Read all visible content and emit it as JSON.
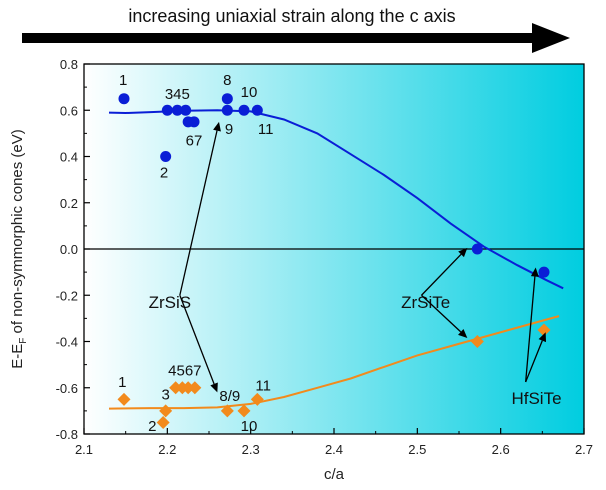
{
  "chart_data": {
    "type": "scatter",
    "title": "increasing uniaxial strain along the c axis",
    "xlabel": "c/a",
    "ylabel_main": "E-E",
    "ylabel_sub": "F",
    "ylabel_rest": " of non-symmorphic cones (eV)",
    "xlim": [
      2.1,
      2.7
    ],
    "ylim": [
      -0.8,
      0.8
    ],
    "x_ticks": [
      "2.1",
      "2.2",
      "2.3",
      "2.4",
      "2.5",
      "2.6",
      "2.7"
    ],
    "y_ticks": [
      "0.8",
      "0.6",
      "0.4",
      "0.2",
      "0.0",
      "-0.2",
      "-0.4",
      "-0.6",
      "-0.8"
    ],
    "grid": false,
    "zero_line": true,
    "colors": {
      "upper": "#0a1ed6",
      "lower": "#f28a1c",
      "background_left": "#ffffff",
      "background_right": "#00cde0",
      "arrow": "#000000"
    },
    "series": [
      {
        "marker": "circle",
        "color": "#0a1ed6",
        "points": [
          {
            "x": 2.148,
            "y": 0.65
          },
          {
            "x": 2.198,
            "y": 0.4
          },
          {
            "x": 2.2,
            "y": 0.6
          },
          {
            "x": 2.212,
            "y": 0.6
          },
          {
            "x": 2.222,
            "y": 0.6
          },
          {
            "x": 2.225,
            "y": 0.55
          },
          {
            "x": 2.232,
            "y": 0.55
          },
          {
            "x": 2.272,
            "y": 0.65
          },
          {
            "x": 2.272,
            "y": 0.6
          },
          {
            "x": 2.292,
            "y": 0.6
          },
          {
            "x": 2.308,
            "y": 0.6
          },
          {
            "x": 2.572,
            "y": 0.0
          },
          {
            "x": 2.652,
            "y": -0.1
          }
        ],
        "fit": [
          [
            2.13,
            0.59
          ],
          [
            2.15,
            0.588
          ],
          [
            2.18,
            0.592
          ],
          [
            2.22,
            0.598
          ],
          [
            2.26,
            0.6
          ],
          [
            2.3,
            0.595
          ],
          [
            2.34,
            0.56
          ],
          [
            2.38,
            0.5
          ],
          [
            2.42,
            0.41
          ],
          [
            2.46,
            0.32
          ],
          [
            2.5,
            0.22
          ],
          [
            2.54,
            0.11
          ],
          [
            2.58,
            0.01
          ],
          [
            2.62,
            -0.07
          ],
          [
            2.655,
            -0.135
          ],
          [
            2.675,
            -0.17
          ]
        ]
      },
      {
        "marker": "diamond",
        "color": "#f28a1c",
        "points": [
          {
            "x": 2.148,
            "y": -0.65
          },
          {
            "x": 2.195,
            "y": -0.75
          },
          {
            "x": 2.198,
            "y": -0.7
          },
          {
            "x": 2.21,
            "y": -0.6
          },
          {
            "x": 2.218,
            "y": -0.6
          },
          {
            "x": 2.225,
            "y": -0.6
          },
          {
            "x": 2.233,
            "y": -0.6
          },
          {
            "x": 2.272,
            "y": -0.7
          },
          {
            "x": 2.292,
            "y": -0.7
          },
          {
            "x": 2.308,
            "y": -0.65
          },
          {
            "x": 2.572,
            "y": -0.4
          },
          {
            "x": 2.652,
            "y": -0.35
          }
        ],
        "fit": [
          [
            2.13,
            -0.69
          ],
          [
            2.18,
            -0.688
          ],
          [
            2.22,
            -0.688
          ],
          [
            2.26,
            -0.685
          ],
          [
            2.3,
            -0.67
          ],
          [
            2.34,
            -0.64
          ],
          [
            2.38,
            -0.6
          ],
          [
            2.42,
            -0.56
          ],
          [
            2.46,
            -0.51
          ],
          [
            2.5,
            -0.46
          ],
          [
            2.54,
            -0.42
          ],
          [
            2.58,
            -0.38
          ],
          [
            2.62,
            -0.34
          ],
          [
            2.66,
            -0.3
          ],
          [
            2.67,
            -0.29
          ]
        ]
      }
    ],
    "point_labels": [
      {
        "text": "1",
        "x": 2.147,
        "y": 0.73
      },
      {
        "text": "2",
        "x": 2.196,
        "y": 0.33
      },
      {
        "text": "345",
        "x": 2.212,
        "y": 0.67
      },
      {
        "text": "67",
        "x": 2.232,
        "y": 0.47
      },
      {
        "text": "8",
        "x": 2.272,
        "y": 0.73
      },
      {
        "text": "9",
        "x": 2.274,
        "y": 0.52
      },
      {
        "text": "10",
        "x": 2.298,
        "y": 0.68
      },
      {
        "text": "11",
        "x": 2.318,
        "y": 0.52
      },
      {
        "text": "1",
        "x": 2.146,
        "y": -0.575
      },
      {
        "text": "2",
        "x": 2.182,
        "y": -0.765
      },
      {
        "text": "3",
        "x": 2.198,
        "y": -0.63
      },
      {
        "text": "4567",
        "x": 2.221,
        "y": -0.525
      },
      {
        "text": "8/9",
        "x": 2.275,
        "y": -0.635
      },
      {
        "text": "10",
        "x": 2.298,
        "y": -0.765
      },
      {
        "text": "11",
        "x": 2.315,
        "y": -0.59
      }
    ],
    "annotations": [
      {
        "text": "ZrSiS",
        "x": 2.203,
        "y": -0.23,
        "arrows": [
          [
            2.262,
            0.55
          ],
          [
            2.26,
            -0.62
          ]
        ],
        "from": [
          2.215,
          -0.2
        ]
      },
      {
        "text": "ZrSiTe",
        "x": 2.51,
        "y": -0.23,
        "arrows": [
          [
            2.56,
            0.005
          ],
          [
            2.56,
            -0.385
          ]
        ],
        "from": [
          2.505,
          -0.2
        ]
      },
      {
        "text": "HfSiTe",
        "x": 2.643,
        "y": -0.645,
        "arrows": [
          [
            2.642,
            -0.08
          ],
          [
            2.654,
            -0.36
          ]
        ],
        "from": [
          2.63,
          -0.575
        ]
      }
    ]
  }
}
